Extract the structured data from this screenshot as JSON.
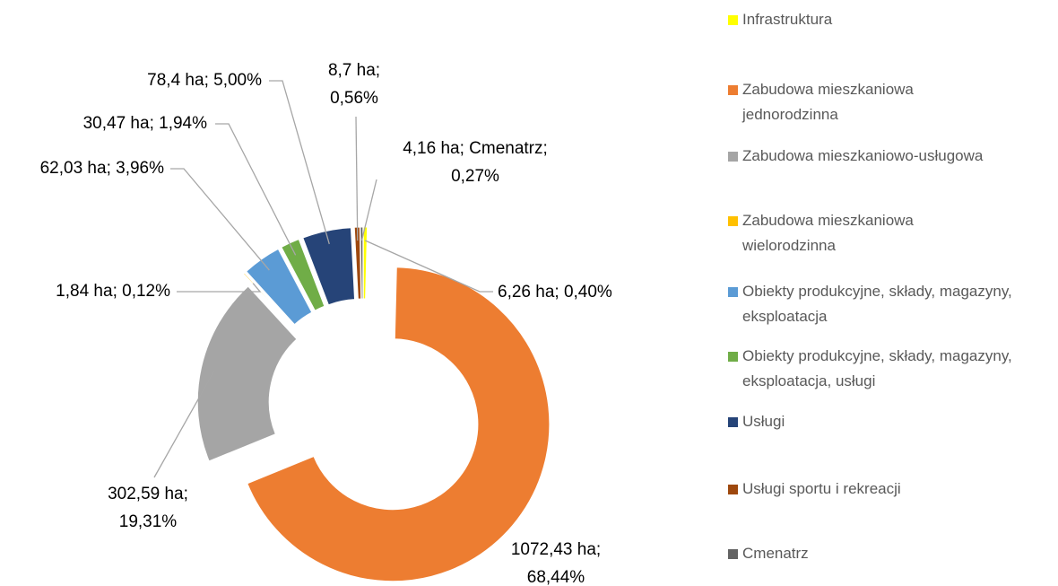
{
  "chart_data": {
    "type": "pie",
    "categories": [
      "Infrastruktura",
      "Zabudowa mieszkaniowa jednorodzinna",
      "Zabudowa mieszkaniowo-usługowa",
      "Zabudowa mieszkaniowa wielorodzinna",
      "Obiekty produkcyjne, składy, magazyny, eksploatacja",
      "Obiekty produkcyjne, składy, magazyny, eksploatacja, usługi",
      "Usługi",
      "Usługi sportu i rekreacji",
      "Cmenatrz"
    ],
    "values": [
      6.26,
      1072.43,
      302.59,
      1.84,
      62.03,
      30.47,
      78.4,
      8.7,
      4.16
    ],
    "value_labels": [
      "6,26 ha; 0,40%",
      "1072,43 ha; 68,44%",
      "302,59 ha; 19,31%",
      "1,84 ha; 0,12%",
      "62,03 ha; 3,96%",
      "30,47 ha; 1,94%",
      "78,4 ha; 5,00%",
      "8,7 ha; 0,56%",
      "4,16 ha; Cmenatrz; 0,27%"
    ],
    "colors": [
      "#ffff00",
      "#ed7d31",
      "#a5a5a5",
      "#ffc000",
      "#5b9bd5",
      "#70ad47",
      "#264478",
      "#9e480e",
      "#636363"
    ],
    "legend": "right"
  }
}
